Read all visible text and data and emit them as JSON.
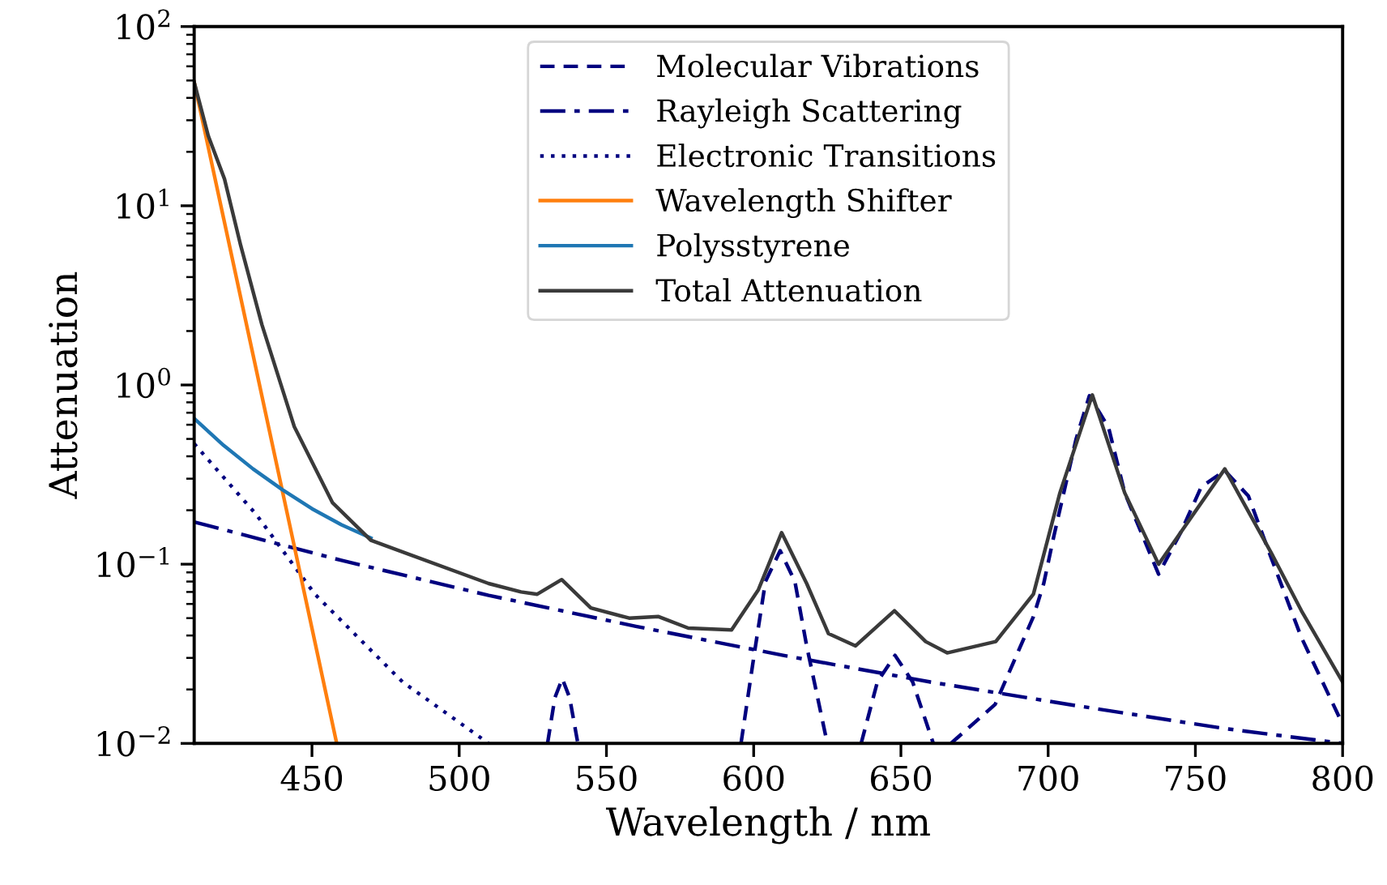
{
  "chart_data": {
    "type": "line",
    "xlabel": "Wavelength / nm",
    "ylabel": "Attenuation",
    "log": "y",
    "xlim": [
      410,
      800
    ],
    "xticks": [
      450,
      500,
      550,
      600,
      650,
      700,
      750,
      800
    ],
    "ylim": [
      0.01,
      100
    ],
    "yticks": [
      {
        "value": 0.01,
        "label": "10$^{−2}$"
      },
      {
        "value": 0.1,
        "label": "10$^{−1}$"
      },
      {
        "value": 1,
        "label": "10$^{0}$"
      },
      {
        "value": 10,
        "label": "10$^{1}$"
      },
      {
        "value": 100,
        "label": "10$^{2}$"
      }
    ],
    "legend": "top",
    "grid": false,
    "series": [
      {
        "name": "Molecular Vibrations",
        "color": "#00007f",
        "line_style": "dashed",
        "x": [
          530,
          532.5,
          535,
          537.5,
          540.3,
          560,
          595.7,
          600,
          604,
          609,
          614,
          618,
          625,
          630,
          636.5,
          642,
          648,
          654,
          661,
          664,
          667,
          682,
          695,
          698.5,
          702,
          709.5,
          714,
          720.5,
          726,
          737.5,
          745,
          752,
          760,
          768,
          775.6,
          786,
          800
        ],
        "values": [
          0.01,
          0.018,
          0.023,
          0.018,
          0.01,
          null,
          0.01,
          0.03,
          0.08,
          0.119,
          0.08,
          0.035,
          0.01,
          null,
          0.01,
          0.022,
          0.031,
          0.022,
          0.01,
          null,
          0.01,
          0.0165,
          0.051,
          0.078,
          0.145,
          0.5,
          0.87,
          0.58,
          0.25,
          0.088,
          0.15,
          0.27,
          0.333,
          0.24,
          0.11,
          0.039,
          0.0128
        ]
      },
      {
        "name": "Rayleigh Scattering",
        "color": "#00007f",
        "line_style": "dashdot",
        "x": [
          410,
          460,
          510,
          560,
          610,
          660,
          710,
          760,
          800
        ],
        "values": [
          0.172,
          0.105,
          0.067,
          0.045,
          0.031,
          0.022,
          0.0162,
          0.0121,
          0.01
        ]
      },
      {
        "name": "Electronic Transitions",
        "color": "#00007f",
        "line_style": "dotted",
        "x": [
          410,
          431,
          451,
          480.8,
          510
        ],
        "values": [
          0.47,
          0.19,
          0.068,
          0.022,
          0.01
        ]
      },
      {
        "name": "Wavelength Shifter",
        "color": "#ff7f0e",
        "line_style": "solid",
        "x": [
          410,
          420,
          430,
          440,
          450,
          458.4
        ],
        "values": [
          49,
          8.5,
          1.47,
          0.254,
          0.0439,
          0.01
        ]
      },
      {
        "name": "Polysstyrene",
        "color": "#1f77b4",
        "line_style": "solid",
        "x": [
          410,
          420,
          430,
          440,
          450,
          460,
          470
        ],
        "values": [
          0.65,
          0.46,
          0.34,
          0.26,
          0.204,
          0.166,
          0.14
        ]
      },
      {
        "name": "Total Attenuation",
        "color": "#3a3a3a",
        "line_style": "solid",
        "x": [
          410,
          414.8,
          420.3,
          425.8,
          433,
          444,
          457,
          470,
          510,
          521,
          526.5,
          534.8,
          544.7,
          557.7,
          567.7,
          577.8,
          592.5,
          601.6,
          609.5,
          618,
          625.4,
          634.6,
          647.8,
          658.4,
          665.7,
          682.2,
          695,
          704,
          715,
          726,
          737.5,
          760,
          775.6,
          786,
          800
        ],
        "values": [
          49,
          24.5,
          14.1,
          6.0,
          2.17,
          0.585,
          0.22,
          0.136,
          0.078,
          0.07,
          0.068,
          0.082,
          0.057,
          0.05,
          0.051,
          0.044,
          0.043,
          0.072,
          0.15,
          0.078,
          0.041,
          0.035,
          0.055,
          0.037,
          0.032,
          0.037,
          0.068,
          0.25,
          0.88,
          0.25,
          0.1,
          0.34,
          0.117,
          0.055,
          0.022
        ]
      }
    ]
  }
}
